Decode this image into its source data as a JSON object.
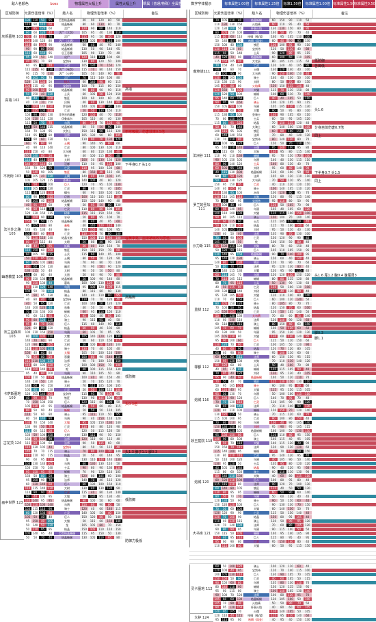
{
  "legend": [
    {
      "label": "敌人名颜色",
      "bg": "#ffffff",
      "color": "#111"
    },
    {
      "label": "boss",
      "bg": "#ffffff",
      "color": "#c00"
    },
    {
      "label": "物理属性大幅上升",
      "bg": "#c99bd9",
      "color": "#111"
    },
    {
      "label": "属性大幅上升",
      "bg": "#8e7bc9",
      "color": "#111"
    },
    {
      "label": "瞬属（普通/特殊）全属性上升",
      "bg": "#6c5fae",
      "color": "#fff"
    },
    {
      "label": "数字字体提示",
      "bg": "#ffffff",
      "color": "#111"
    },
    {
      "label": "标准属性1.00倍",
      "bg": "#3f5fae",
      "color": "#fff"
    },
    {
      "label": "标准属性1.25倍",
      "bg": "#3f5fae",
      "color": "#fff"
    },
    {
      "label": "标准1.50倍",
      "bg": "#111111",
      "color": "#fff"
    },
    {
      "label": "标准属性1.00倍",
      "bg": "#3f5fae",
      "color": "#fff"
    },
    {
      "label": "标准属性1.50倍",
      "bg": "#c0304a",
      "color": "#fff"
    },
    {
      "label": "标准属性0.50倍",
      "bg": "#c0304a",
      "color": "#fff"
    }
  ],
  "left": {
    "headers": [
      "区域防御",
      "元素伤害倍率（%）",
      "敌人名",
      "物理伤害倍率（%）",
      "备注"
    ],
    "regions": [
      {
        "name": "灰烬墓地 103",
        "rows": 9
      },
      {
        "name": "高墙 102",
        "rows": 22
      },
      {
        "name": "不死街 103",
        "rows": 15
      },
      {
        "name": "法兰外之路 105",
        "rows": 12
      },
      {
        "name": "幽邃教堂 106",
        "rows": 10
      },
      {
        "name": "法兰巫森林103",
        "rows": 18
      },
      {
        "name": "卡萨斯墓地 109",
        "rows": 12
      },
      {
        "name": "古龙顶 124",
        "rows": 11
      },
      {
        "name": "画中世界 123",
        "rows": 18
      }
    ],
    "names": [
      "巨型结晶蜥蜴",
      "结晶蜥蜴",
      "活尸",
      "活尸（大剑）",
      "活尸",
      "活尸（大盾）",
      "结晶蜥蜴",
      "结晶蜥蜴",
      "谷王恶魔",
      "化尸",
      "宝剑侍",
      "亡灵",
      "活尸（有剑）",
      "活尸（火把）",
      "活尸",
      "妇人",
      "宝剑侍",
      "结晶蜥蜴",
      "士兵",
      "铁匠",
      "贝姆",
      "罗亚德",
      "亡灵",
      "冷冽谷的踊者",
      "伊鲁席尔",
      "乌鸦",
      "结晶蜥蜴",
      "大剑士",
      "法师",
      "妇人",
      "土偶",
      "亡灵",
      "大乌鸦",
      "骑士",
      "大树",
      "汉娜",
      "亡灵",
      "铁匠",
      "土偶",
      "圣骑士",
      "巨人",
      "亡灵",
      "蠕虫",
      "巨鼠",
      "结晶蜥蜴",
      "大蟹",
      "亡灵",
      "树林",
      "水母",
      "结晶蜥蜴",
      "毒蛙",
      "骑士",
      "亡灵",
      "结晶长者",
      "大眼",
      "妖精",
      "铁匠",
      "士兵",
      "土偶",
      "乌鸦",
      "幽灵",
      "大树",
      "大鼠",
      "结晶蜥蜴",
      "墓场",
      "乌鸦",
      "结晶",
      "骑士",
      "宝剑侍",
      "亡灵",
      "石像",
      "蜥蜴",
      "巨人",
      "骑士",
      "巨人",
      "结晶",
      "乌鸦",
      "大蟹",
      "亡灵",
      "大树",
      "骑士",
      "大猫",
      "恶魔",
      "法师",
      "亡灵",
      "蛇",
      "乌鸦",
      "结晶蜥蜴",
      "骑士",
      "大树",
      "亡灵",
      "宝剑侍",
      "铁匠",
      "巨人",
      "结晶蜥蜴",
      "蜥蜴",
      "骑士",
      "乌鸦",
      "大猫",
      "亡灵",
      "巨人",
      "大树",
      "法师",
      "法师",
      "宝剑侍",
      "骑士",
      "结晶",
      "龙",
      "乌鸦",
      "士兵",
      "蜥蜴",
      "骑士",
      "法师",
      "巨人",
      "大树",
      "亡灵",
      "大猫",
      "结晶蜥蜴",
      "乌鸦",
      "骑士",
      "亡灵",
      "巨人",
      "大猫",
      "龙",
      "结晶"
    ],
    "notes": [
      {
        "text": "高墙",
        "color": "black"
      },
      {
        "text": "不可吸收、伤害效率0.5倍",
        "color": "red"
      },
      {
        "text": "下半身0.7 头1.0",
        "color": "black"
      },
      {
        "text": "在黄字处，血液被吸收为原值。",
        "color": "red"
      },
      {
        "text": "高路御",
        "color": "black"
      },
      {
        "text": "低防御",
        "color": "black"
      },
      {
        "text": "头0.3倍",
        "color": "red"
      },
      {
        "text": "头1.3 脖子1.1 脚0.3",
        "color": "black"
      },
      {
        "text": "低防御",
        "color": "black"
      },
      {
        "text": "防御力极低",
        "color": "black"
      }
    ]
  },
  "right": {
    "headers": [
      "区域防御",
      "元素伤害倍率（%）",
      "敌人名",
      "物理伤害倍率（%）",
      "备注"
    ],
    "regions": [
      {
        "name": "献祭道111",
        "rows": 26
      },
      {
        "name": "法洲谷 111",
        "rows": 15
      },
      {
        "name": "罗兰的圣坛111",
        "rows": 10
      },
      {
        "name": "沙力斯 115",
        "rows": 9
      },
      {
        "name": "监狱 112",
        "rows": 22
      },
      {
        "name": "罪都 112",
        "rows": 6
      },
      {
        "name": "熔城 116",
        "rows": 10
      },
      {
        "name": "妖王庭院 118",
        "rows": 10
      },
      {
        "name": "熔城 120",
        "rows": 10
      },
      {
        "name": "大书库 121",
        "rows": 15
      },
      {
        "name": "灵卡墓地 112",
        "rows": 12
      },
      {
        "name": "大护 124",
        "rows": 2
      }
    ],
    "names": [
      "结晶蜥蜴",
      "火焰精",
      "纤弱火焰",
      "火傀",
      "哈姆（格/游）",
      "哈姆（风金）",
      "铁匠",
      "宝剑侍",
      "士兵",
      "结晶蜥蜴",
      "大北辰",
      "亡灵",
      "土偶",
      "大乌鸦",
      "骑士",
      "大树",
      "火焰精",
      "大猫",
      "蜥蜴",
      "巨人",
      "骑士",
      "乌鸦",
      "大蟹",
      "圣骑士",
      "士兵",
      "结晶",
      "大骑士",
      "铁匠",
      "法师",
      "宝剑侍",
      "巨人",
      "土偶",
      "大狗",
      "蜥蜴",
      "乌鸦",
      "士兵",
      "大树",
      "结晶蜥蜴",
      "法师",
      "大乌鸦",
      "亡灵",
      "骑士",
      "水母",
      "大狗",
      "宝剑侍",
      "巨人",
      "乌鸦",
      "大猫",
      "骑士",
      "士兵",
      "结晶",
      "大树",
      "法师",
      "亡灵",
      "蛇",
      "大狗",
      "巨人",
      "结晶蜥蜴",
      "骑士",
      "铁匠",
      "法师",
      "大蟹",
      "乌鸦",
      "蜥蜴",
      "士兵",
      "亡灵",
      "大树",
      "大猫",
      "巨人",
      "骑士",
      "结晶",
      "亡灵",
      "大乌鸦",
      "法师",
      "骑士",
      "蜥蜴",
      "乌鸦",
      "大猫",
      "巨人",
      "亡灵",
      "结晶",
      "骑士",
      "法师",
      "大狗",
      "士兵",
      "蜥蜴",
      "大树",
      "结晶蜥蜴",
      "铁匠",
      "骑士",
      "大猫",
      "乌鸦",
      "巨人",
      "亡灵",
      "法师",
      "蜥蜴",
      "骑士",
      "亡灵",
      "乌鸦",
      "大树",
      "结晶蜥蜴",
      "巨人",
      "骑士",
      "大猫",
      "法师",
      "蜥蜴",
      "亡灵",
      "乌鸦",
      "士兵",
      "结晶",
      "骑士",
      "大狗",
      "巨人",
      "法师",
      "铁匠",
      "蜥蜴",
      "乌鸦",
      "骑士",
      "巨人",
      "大猫",
      "亡灵",
      "结晶",
      "骑士",
      "法师",
      "乌鸦",
      "蜥蜴",
      "巨人",
      "亡灵",
      "大猫",
      "骑士",
      "结晶",
      "乌鸦",
      "士兵",
      "骑士",
      "宝剑侍",
      "巨人",
      "亡灵",
      "乌鸦",
      "蜥蜴",
      "骑士",
      "法师"
    ],
    "notes": [
      {
        "text": "低防御",
        "color": "black"
      },
      {
        "text": "告御低",
        "color": "black"
      },
      {
        "text": "头1.6",
        "color": "black"
      },
      {
        "text": "分身自体伤害0.7倍",
        "color": "black"
      },
      {
        "text": "同上",
        "color": "black"
      },
      {
        "text": "下半身0.7 头1.5",
        "color": "black"
      },
      {
        "text": "同上",
        "color": "black"
      },
      {
        "text": "头1.6 尾1.2 腹0.4 腹尾周3",
        "color": "black"
      },
      {
        "text": "脚0.3",
        "color": "black"
      },
      {
        "text": "脚1.1",
        "color": "black"
      }
    ]
  },
  "palette": {
    "red": "#c74a5a",
    "pink": "#e7b9c3",
    "purple": "#7c62b5",
    "lavender": "#c7b3e0",
    "blue": "#3f6fae",
    "teal": "#2f8aa0",
    "black": "#111111",
    "white": "#ffffff",
    "gray": "#f2f2f2"
  }
}
